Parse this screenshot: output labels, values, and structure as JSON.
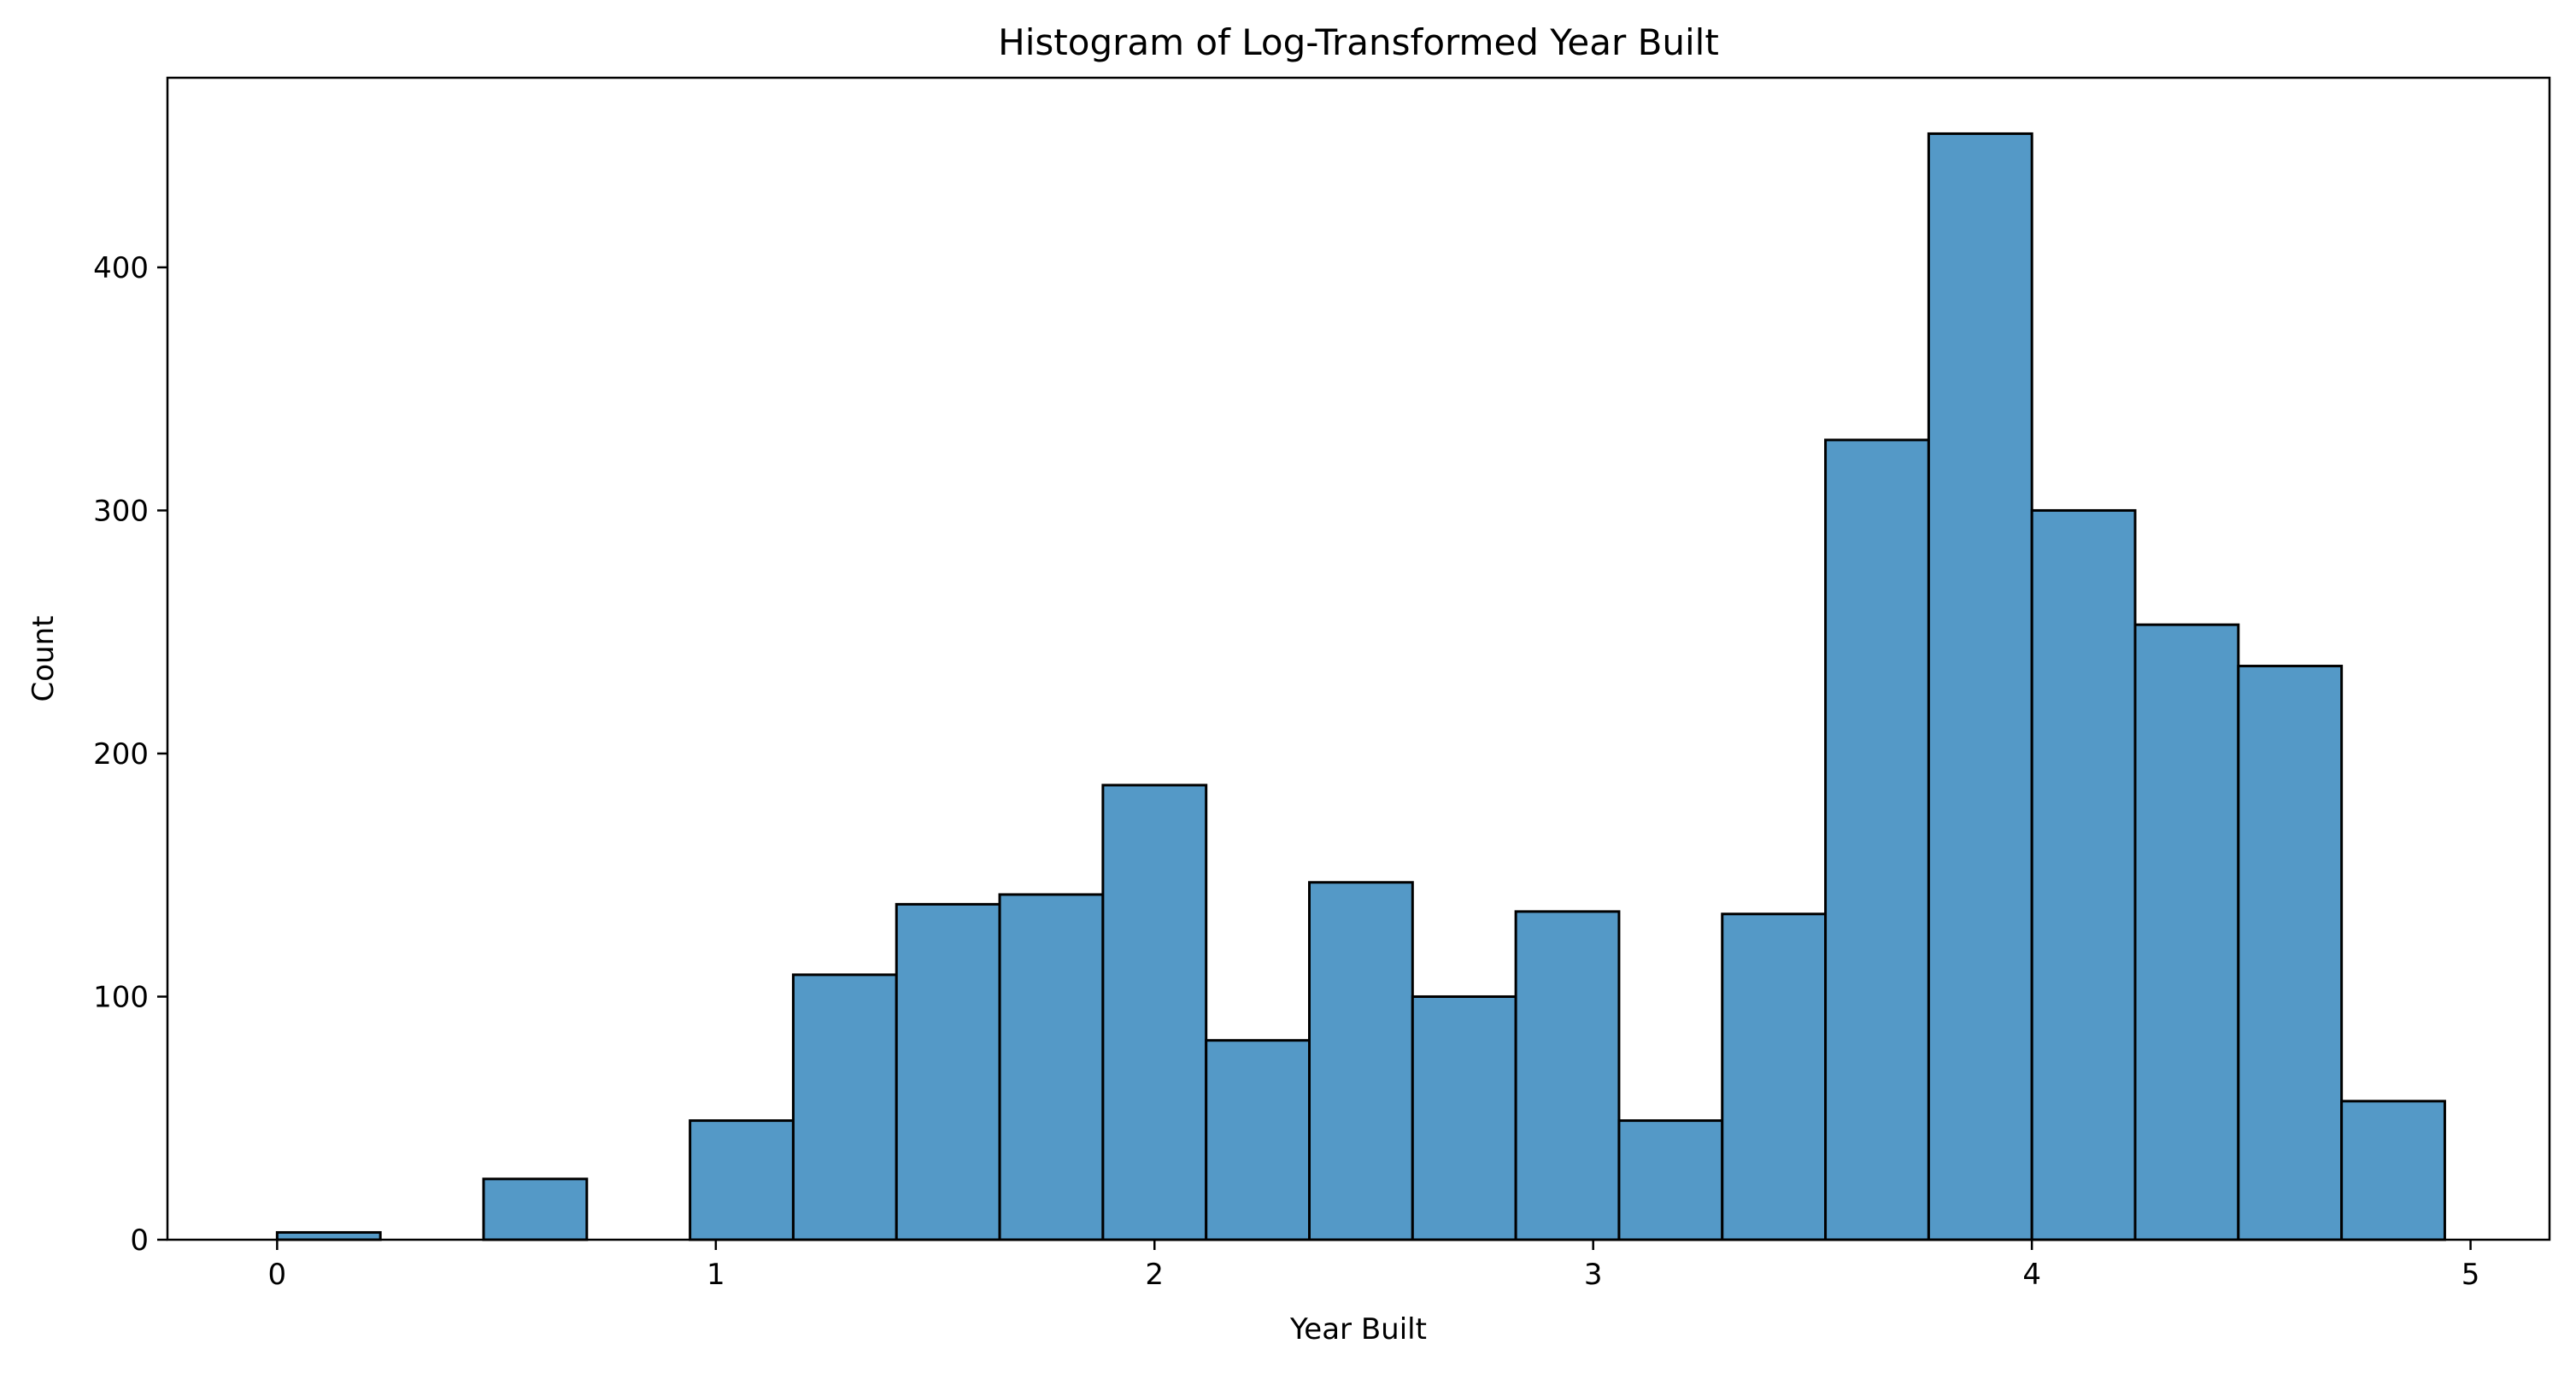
{
  "chart_data": {
    "type": "bar",
    "title": "Histogram of Log-Transformed Year Built",
    "xlabel": "Year Built",
    "ylabel": "Count",
    "xlim": [
      -0.25,
      5.18
    ],
    "ylim": [
      0,
      478
    ],
    "grid": false,
    "x_ticks": [
      0,
      1,
      2,
      3,
      4,
      5
    ],
    "y_ticks": [
      0,
      100,
      200,
      300,
      400
    ],
    "bin_start": 0,
    "bin_width": 0.2353,
    "values": [
      3,
      0,
      25,
      0,
      49,
      109,
      138,
      142,
      187,
      82,
      147,
      100,
      135,
      49,
      134,
      329,
      455,
      300,
      253,
      236,
      57
    ],
    "colors": {
      "bar_fill": "#5499c7",
      "bar_edge": "#000000"
    }
  }
}
